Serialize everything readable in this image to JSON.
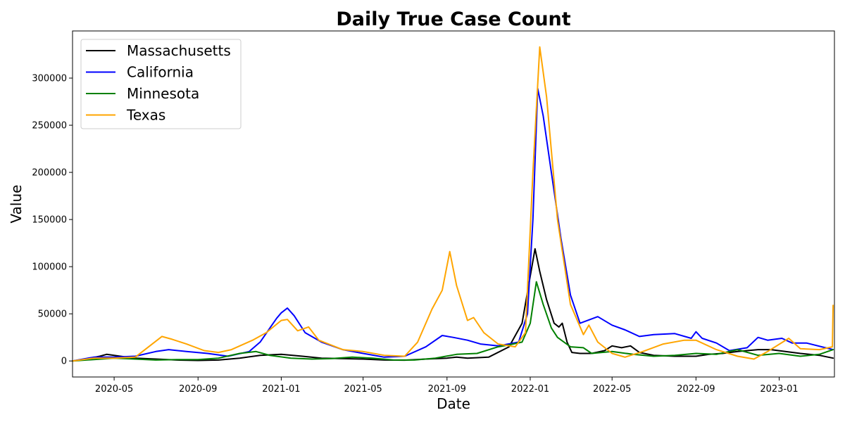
{
  "chart_data": {
    "type": "line",
    "title": "Daily True Case Count",
    "xlabel": "Date",
    "ylabel": "Value",
    "xlim": [
      "2020-03-01",
      "2023-03-23"
    ],
    "ylim": [
      -17000,
      350000
    ],
    "x_ticks": [
      "2020-05",
      "2020-09",
      "2021-01",
      "2021-05",
      "2021-09",
      "2022-01",
      "2022-05",
      "2022-09",
      "2023-01"
    ],
    "y_ticks": [
      0,
      50000,
      100000,
      150000,
      200000,
      250000,
      300000
    ],
    "grid": false,
    "legend_position": "top-left",
    "series": [
      {
        "name": "Massachusetts",
        "color": "#000000",
        "points": [
          [
            "2020-03-01",
            0
          ],
          [
            "2020-03-20",
            2000
          ],
          [
            "2020-04-10",
            5000
          ],
          [
            "2020-04-20",
            7000
          ],
          [
            "2020-05-10",
            5000
          ],
          [
            "2020-06-01",
            3000
          ],
          [
            "2020-07-01",
            2000
          ],
          [
            "2020-08-01",
            1000
          ],
          [
            "2020-09-01",
            500
          ],
          [
            "2020-10-01",
            1000
          ],
          [
            "2020-11-01",
            3000
          ],
          [
            "2020-12-01",
            6000
          ],
          [
            "2021-01-01",
            7000
          ],
          [
            "2021-02-01",
            5000
          ],
          [
            "2021-03-01",
            3000
          ],
          [
            "2021-04-01",
            2500
          ],
          [
            "2021-05-01",
            2000
          ],
          [
            "2021-06-01",
            1000
          ],
          [
            "2021-07-01",
            800
          ],
          [
            "2021-08-01",
            2000
          ],
          [
            "2021-09-01",
            3000
          ],
          [
            "2021-09-15",
            4000
          ],
          [
            "2021-10-01",
            3000
          ],
          [
            "2021-11-01",
            4000
          ],
          [
            "2021-12-01",
            15000
          ],
          [
            "2021-12-20",
            40000
          ],
          [
            "2022-01-01",
            90000
          ],
          [
            "2022-01-08",
            119000
          ],
          [
            "2022-01-15",
            95000
          ],
          [
            "2022-01-25",
            65000
          ],
          [
            "2022-02-05",
            40000
          ],
          [
            "2022-02-12",
            36000
          ],
          [
            "2022-02-17",
            40000
          ],
          [
            "2022-02-24",
            20000
          ],
          [
            "2022-03-03",
            9000
          ],
          [
            "2022-03-15",
            8000
          ],
          [
            "2022-04-01",
            8000
          ],
          [
            "2022-04-20",
            11000
          ],
          [
            "2022-05-01",
            16000
          ],
          [
            "2022-05-15",
            14000
          ],
          [
            "2022-05-28",
            16000
          ],
          [
            "2022-06-10",
            9000
          ],
          [
            "2022-07-01",
            6000
          ],
          [
            "2022-08-01",
            5000
          ],
          [
            "2022-09-01",
            5000
          ],
          [
            "2022-09-20",
            7000
          ],
          [
            "2022-10-10",
            8000
          ],
          [
            "2022-11-01",
            10000
          ],
          [
            "2022-12-01",
            12000
          ],
          [
            "2022-12-20",
            12000
          ],
          [
            "2023-01-10",
            10000
          ],
          [
            "2023-02-01",
            8000
          ],
          [
            "2023-03-01",
            6000
          ],
          [
            "2023-03-21",
            3000
          ]
        ]
      },
      {
        "name": "California",
        "color": "#0000ff",
        "points": [
          [
            "2020-03-01",
            0
          ],
          [
            "2020-04-01",
            4000
          ],
          [
            "2020-05-01",
            4000
          ],
          [
            "2020-06-01",
            5000
          ],
          [
            "2020-07-01",
            10000
          ],
          [
            "2020-07-20",
            12000
          ],
          [
            "2020-08-15",
            10000
          ],
          [
            "2020-09-15",
            8000
          ],
          [
            "2020-10-15",
            5000
          ],
          [
            "2020-11-15",
            10000
          ],
          [
            "2020-12-01",
            20000
          ],
          [
            "2020-12-25",
            45000
          ],
          [
            "2021-01-01",
            51000
          ],
          [
            "2021-01-10",
            56000
          ],
          [
            "2021-01-20",
            48000
          ],
          [
            "2021-02-05",
            30000
          ],
          [
            "2021-03-01",
            20000
          ],
          [
            "2021-04-01",
            12000
          ],
          [
            "2021-05-01",
            8000
          ],
          [
            "2021-06-01",
            4000
          ],
          [
            "2021-07-01",
            5000
          ],
          [
            "2021-08-01",
            15000
          ],
          [
            "2021-08-25",
            27000
          ],
          [
            "2021-09-10",
            25000
          ],
          [
            "2021-10-01",
            22000
          ],
          [
            "2021-10-20",
            18000
          ],
          [
            "2021-11-15",
            16000
          ],
          [
            "2021-12-15",
            20000
          ],
          [
            "2021-12-28",
            50000
          ],
          [
            "2022-01-05",
            150000
          ],
          [
            "2022-01-12",
            289000
          ],
          [
            "2022-01-20",
            260000
          ],
          [
            "2022-02-01",
            200000
          ],
          [
            "2022-02-15",
            130000
          ],
          [
            "2022-03-01",
            70000
          ],
          [
            "2022-03-15",
            40000
          ],
          [
            "2022-04-10",
            47000
          ],
          [
            "2022-05-01",
            38000
          ],
          [
            "2022-05-20",
            33000
          ],
          [
            "2022-06-10",
            26000
          ],
          [
            "2022-07-01",
            28000
          ],
          [
            "2022-08-01",
            29000
          ],
          [
            "2022-08-25",
            24000
          ],
          [
            "2022-09-01",
            31000
          ],
          [
            "2022-09-10",
            24000
          ],
          [
            "2022-10-01",
            19000
          ],
          [
            "2022-10-20",
            11000
          ],
          [
            "2022-11-15",
            14000
          ],
          [
            "2022-12-01",
            25000
          ],
          [
            "2022-12-15",
            22000
          ],
          [
            "2023-01-05",
            24000
          ],
          [
            "2023-01-20",
            19000
          ],
          [
            "2023-02-10",
            19000
          ],
          [
            "2023-03-21",
            12000
          ]
        ]
      },
      {
        "name": "Minnesota",
        "color": "#008000",
        "points": [
          [
            "2020-03-01",
            0
          ],
          [
            "2020-04-01",
            1500
          ],
          [
            "2020-05-01",
            3000
          ],
          [
            "2020-06-01",
            2000
          ],
          [
            "2020-07-01",
            1000
          ],
          [
            "2020-08-01",
            1500
          ],
          [
            "2020-09-01",
            1500
          ],
          [
            "2020-10-01",
            3000
          ],
          [
            "2020-11-01",
            8000
          ],
          [
            "2020-11-25",
            10000
          ],
          [
            "2020-12-15",
            6000
          ],
          [
            "2021-01-15",
            3000
          ],
          [
            "2021-02-15",
            2000
          ],
          [
            "2021-03-15",
            2500
          ],
          [
            "2021-04-15",
            4000
          ],
          [
            "2021-05-15",
            3000
          ],
          [
            "2021-06-15",
            1000
          ],
          [
            "2021-07-15",
            1000
          ],
          [
            "2021-08-15",
            3000
          ],
          [
            "2021-09-15",
            7000
          ],
          [
            "2021-10-15",
            8000
          ],
          [
            "2021-11-15",
            15000
          ],
          [
            "2021-12-01",
            17000
          ],
          [
            "2021-12-20",
            20000
          ],
          [
            "2022-01-01",
            40000
          ],
          [
            "2022-01-10",
            84000
          ],
          [
            "2022-01-20",
            60000
          ],
          [
            "2022-02-01",
            35000
          ],
          [
            "2022-02-10",
            25000
          ],
          [
            "2022-03-01",
            15000
          ],
          [
            "2022-03-20",
            14000
          ],
          [
            "2022-04-01",
            8000
          ],
          [
            "2022-05-01",
            10000
          ],
          [
            "2022-06-01",
            7000
          ],
          [
            "2022-07-01",
            5000
          ],
          [
            "2022-08-01",
            6000
          ],
          [
            "2022-09-01",
            8000
          ],
          [
            "2022-10-01",
            7000
          ],
          [
            "2022-11-01",
            12000
          ],
          [
            "2022-12-01",
            6000
          ],
          [
            "2023-01-01",
            8000
          ],
          [
            "2023-02-01",
            5000
          ],
          [
            "2023-03-01",
            7000
          ],
          [
            "2023-03-21",
            12000
          ]
        ]
      },
      {
        "name": "Texas",
        "color": "#ffa500",
        "points": [
          [
            "2020-03-01",
            0
          ],
          [
            "2020-04-01",
            3000
          ],
          [
            "2020-05-01",
            3000
          ],
          [
            "2020-06-01",
            4000
          ],
          [
            "2020-07-10",
            26000
          ],
          [
            "2020-07-25",
            23000
          ],
          [
            "2020-08-15",
            18000
          ],
          [
            "2020-09-10",
            11000
          ],
          [
            "2020-10-01",
            9000
          ],
          [
            "2020-10-20",
            12000
          ],
          [
            "2020-11-20",
            22000
          ],
          [
            "2020-12-10",
            30000
          ],
          [
            "2021-01-01",
            43000
          ],
          [
            "2021-01-10",
            44000
          ],
          [
            "2021-01-25",
            32000
          ],
          [
            "2021-02-10",
            36000
          ],
          [
            "2021-02-25",
            22000
          ],
          [
            "2021-04-01",
            12000
          ],
          [
            "2021-05-01",
            10000
          ],
          [
            "2021-06-01",
            6000
          ],
          [
            "2021-07-01",
            5000
          ],
          [
            "2021-07-20",
            20000
          ],
          [
            "2021-08-10",
            55000
          ],
          [
            "2021-08-25",
            75000
          ],
          [
            "2021-09-05",
            116000
          ],
          [
            "2021-09-15",
            80000
          ],
          [
            "2021-10-01",
            43000
          ],
          [
            "2021-10-10",
            46000
          ],
          [
            "2021-10-25",
            30000
          ],
          [
            "2021-11-15",
            18000
          ],
          [
            "2021-12-10",
            15000
          ],
          [
            "2021-12-25",
            30000
          ],
          [
            "2022-01-05",
            200000
          ],
          [
            "2022-01-15",
            333000
          ],
          [
            "2022-01-25",
            280000
          ],
          [
            "2022-02-10",
            150000
          ],
          [
            "2022-03-01",
            60000
          ],
          [
            "2022-03-20",
            28000
          ],
          [
            "2022-03-28",
            38000
          ],
          [
            "2022-04-10",
            20000
          ],
          [
            "2022-05-01",
            8000
          ],
          [
            "2022-05-20",
            4000
          ],
          [
            "2022-06-15",
            10000
          ],
          [
            "2022-07-15",
            18000
          ],
          [
            "2022-08-15",
            22000
          ],
          [
            "2022-09-01",
            22000
          ],
          [
            "2022-10-01",
            12000
          ],
          [
            "2022-11-01",
            5000
          ],
          [
            "2022-11-25",
            2000
          ],
          [
            "2022-12-15",
            10000
          ],
          [
            "2023-01-15",
            24000
          ],
          [
            "2023-02-01",
            13000
          ],
          [
            "2023-03-01",
            12000
          ],
          [
            "2023-03-20",
            15000
          ],
          [
            "2023-03-21",
            59000
          ]
        ]
      }
    ]
  }
}
